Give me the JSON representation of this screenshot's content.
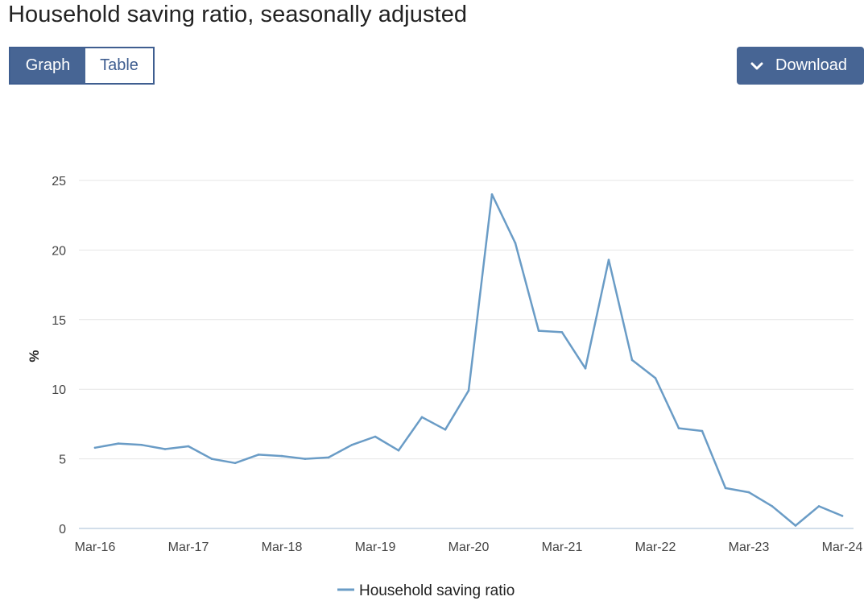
{
  "page": {
    "title": "Household saving ratio, seasonally adjusted"
  },
  "view_toggle": {
    "graph_label": "Graph",
    "table_label": "Table",
    "active": "Graph"
  },
  "download": {
    "label": "Download",
    "icon": "chevron-down-icon"
  },
  "colors": {
    "accent": "#476594",
    "series_line": "#6a9cc6",
    "grid": "#e6e6e6",
    "axis": "#c4d4e4"
  },
  "chart_data": {
    "type": "line",
    "ylabel": "%",
    "xlabel": "",
    "ylim": [
      0,
      25
    ],
    "yticks": [
      0,
      5,
      10,
      15,
      20,
      25
    ],
    "grid": true,
    "legend_position": "bottom-center",
    "x": [
      "Mar-16",
      "Jun-16",
      "Sep-16",
      "Dec-16",
      "Mar-17",
      "Jun-17",
      "Sep-17",
      "Dec-17",
      "Mar-18",
      "Jun-18",
      "Sep-18",
      "Dec-18",
      "Mar-19",
      "Jun-19",
      "Sep-19",
      "Dec-19",
      "Mar-20",
      "Jun-20",
      "Sep-20",
      "Dec-20",
      "Mar-21",
      "Jun-21",
      "Sep-21",
      "Dec-21",
      "Mar-22",
      "Jun-22",
      "Sep-22",
      "Dec-22",
      "Mar-23",
      "Jun-23",
      "Sep-23",
      "Dec-23",
      "Mar-24"
    ],
    "xticks": [
      "Mar-16",
      "Mar-17",
      "Mar-18",
      "Mar-19",
      "Mar-20",
      "Mar-21",
      "Mar-22",
      "Mar-23",
      "Mar-24"
    ],
    "series": [
      {
        "name": "Household saving ratio",
        "values": [
          5.8,
          6.1,
          6.0,
          5.7,
          5.9,
          5.0,
          4.7,
          5.3,
          5.2,
          5.0,
          5.1,
          6.0,
          6.6,
          5.6,
          8.0,
          7.1,
          9.9,
          24.0,
          20.5,
          14.2,
          14.1,
          11.5,
          19.3,
          12.1,
          10.8,
          7.2,
          7.0,
          2.9,
          2.6,
          1.6,
          0.2,
          1.6,
          0.9
        ]
      }
    ]
  }
}
